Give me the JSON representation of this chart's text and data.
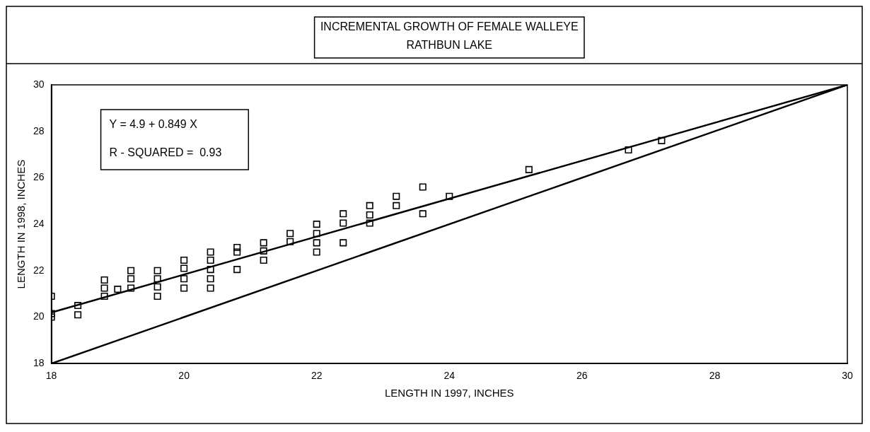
{
  "chart_data": {
    "type": "scatter",
    "title": "INCREMENTAL GROWTH OF FEMALE WALLEYE",
    "subtitle": "RATHBUN LAKE",
    "xlabel": "LENGTH IN 1997, INCHES",
    "ylabel": "LENGTH IN 1998, INCHES",
    "annotations": [
      "Y = 4.9 + 0.849 X",
      "R - SQUARED =  0.93"
    ],
    "xlim": [
      18,
      30
    ],
    "xticks": [
      18,
      20,
      22,
      24,
      26,
      28,
      30
    ],
    "ylim": [
      18,
      30
    ],
    "yticks": [
      18,
      20,
      22,
      24,
      26,
      28,
      30
    ],
    "legend": false,
    "series": [
      {
        "marker": "square",
        "color": "#000000",
        "x": [
          18.0,
          18.0,
          18.0,
          18.4,
          18.4,
          18.8,
          18.8,
          18.8,
          19.0,
          19.2,
          19.2,
          19.2,
          19.6,
          19.6,
          19.6,
          19.6,
          20.0,
          20.0,
          20.0,
          20.0,
          20.4,
          20.4,
          20.4,
          20.4,
          20.4,
          20.8,
          20.8,
          20.8,
          21.2,
          21.2,
          21.2,
          21.6,
          21.6,
          22.0,
          22.0,
          22.0,
          22.0,
          22.4,
          22.4,
          22.4,
          22.8,
          22.8,
          22.8,
          23.2,
          23.2,
          23.6,
          23.6,
          24.0,
          25.2,
          26.7,
          27.2
        ],
        "values": [
          20.9,
          20.15,
          20.0,
          20.5,
          20.1,
          21.6,
          21.25,
          20.9,
          21.2,
          22.0,
          21.65,
          21.25,
          22.0,
          21.65,
          21.3,
          20.9,
          22.45,
          22.1,
          21.65,
          21.25,
          22.8,
          22.45,
          22.05,
          21.65,
          21.25,
          23.0,
          22.8,
          22.05,
          23.2,
          22.85,
          22.45,
          23.6,
          23.25,
          24.0,
          23.6,
          23.2,
          22.8,
          24.45,
          24.05,
          23.2,
          24.8,
          24.4,
          24.05,
          25.2,
          24.8,
          25.6,
          24.45,
          25.2,
          26.35,
          27.2,
          27.6
        ]
      },
      {
        "type": "line",
        "marker": "none",
        "color": "#000000",
        "x": [
          18,
          30
        ],
        "values": [
          20.2,
          30
        ]
      },
      {
        "type": "line",
        "marker": "none",
        "color": "#000000",
        "x": [
          18,
          30
        ],
        "values": [
          18,
          30
        ]
      }
    ]
  }
}
